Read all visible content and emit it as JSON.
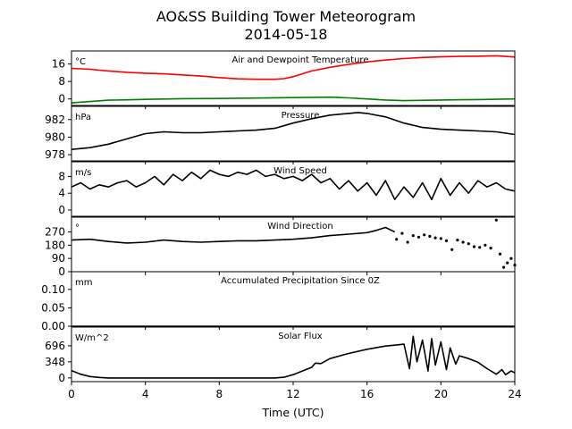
{
  "chart_data": {
    "type": "line",
    "title": "AO&SS Building Tower Meteorogram",
    "subtitle": "2014-05-18",
    "xlabel": "Time (UTC)",
    "xlim": [
      0,
      24
    ],
    "xticks": [
      "0",
      "4",
      "8",
      "12",
      "16",
      "20",
      "24"
    ],
    "panels": [
      {
        "id": "temp",
        "title": "Air and Dewpoint Temperature",
        "unit": "°C",
        "ylim": [
          -3,
          22
        ],
        "yticks": [
          "0",
          "8",
          "16"
        ],
        "series": [
          {
            "color": "#ff0000",
            "style": "line",
            "x": [
              0,
              1,
              2,
              3,
              4,
              5,
              6,
              7,
              8,
              9,
              10,
              11,
              11.5,
              12,
              12.5,
              13,
              14,
              15,
              16,
              17,
              18,
              19,
              20,
              21,
              22,
              23,
              24
            ],
            "y": [
              14,
              13.6,
              12.8,
              12.2,
              11.8,
              11.5,
              11,
              10.5,
              9.8,
              9.2,
              9.0,
              9.0,
              9.3,
              10.2,
              11.5,
              12.8,
              14.5,
              15.8,
              17.0,
              17.8,
              18.5,
              19.0,
              19.3,
              19.5,
              19.6,
              19.8,
              19.2
            ]
          },
          {
            "color": "#008000",
            "style": "line",
            "x": [
              0,
              1,
              2,
              3,
              4,
              6,
              8,
              10,
              12,
              14,
              15,
              16,
              17,
              18,
              20,
              22,
              24
            ],
            "y": [
              -1.8,
              -1.2,
              -0.6,
              -0.4,
              -0.2,
              0.1,
              0.2,
              0.4,
              0.6,
              0.8,
              0.5,
              0.0,
              -0.5,
              -0.8,
              -0.5,
              -0.3,
              0.0
            ]
          }
        ]
      },
      {
        "id": "pressure",
        "title": "Pressure",
        "unit": "hPa",
        "ylim": [
          977.3,
          983.5
        ],
        "yticks": [
          "978",
          "980",
          "982"
        ],
        "series": [
          {
            "color": "#000000",
            "style": "line",
            "x": [
              0,
              1,
              2,
              3,
              4,
              5,
              6,
              7,
              8,
              9,
              10,
              11,
              12,
              13,
              14,
              15,
              15.5,
              16,
              17,
              18,
              19,
              20,
              21,
              22,
              23,
              24
            ],
            "y": [
              978.6,
              978.8,
              979.2,
              979.8,
              980.4,
              980.6,
              980.5,
              980.5,
              980.6,
              980.7,
              980.8,
              981.0,
              981.6,
              982.1,
              982.5,
              982.7,
              982.8,
              982.7,
              982.3,
              981.6,
              981.1,
              980.9,
              980.8,
              980.7,
              980.6,
              980.3
            ]
          }
        ]
      },
      {
        "id": "wind-speed",
        "title": "Wind Speed",
        "unit": "m/s",
        "ylim": [
          -1.5,
          11.5
        ],
        "yticks": [
          "0",
          "4",
          "8"
        ],
        "series": [
          {
            "color": "#000000",
            "style": "line",
            "x": [
              0,
              0.5,
              1,
              1.5,
              2,
              2.5,
              3,
              3.5,
              4,
              4.5,
              5,
              5.5,
              6,
              6.5,
              7,
              7.5,
              8,
              8.5,
              9,
              9.5,
              10,
              10.5,
              11,
              11.5,
              12,
              12.5,
              13,
              13.5,
              14,
              14.5,
              15,
              15.5,
              16,
              16.5,
              17,
              17.5,
              18,
              18.5,
              19,
              19.5,
              20,
              20.5,
              21,
              21.5,
              22,
              22.5,
              23,
              23.5,
              24
            ],
            "y": [
              5.5,
              6.5,
              5.0,
              6.0,
              5.5,
              6.5,
              7.0,
              5.5,
              6.5,
              8.0,
              6.0,
              8.5,
              7.0,
              9.0,
              7.5,
              9.5,
              8.5,
              8.0,
              9.0,
              8.5,
              9.5,
              8.0,
              8.5,
              7.5,
              8.0,
              7.0,
              8.5,
              6.5,
              7.5,
              5.0,
              7.0,
              4.5,
              6.5,
              3.5,
              7.0,
              2.5,
              5.5,
              3.0,
              6.5,
              2.5,
              7.5,
              3.5,
              6.5,
              4.0,
              7.0,
              5.5,
              6.5,
              5.0,
              4.5
            ]
          }
        ]
      },
      {
        "id": "wind-direction",
        "title": "Wind Direction",
        "unit": "°",
        "ylim": [
          0,
          370
        ],
        "yticks": [
          "0",
          "90",
          "180",
          "270"
        ],
        "series": [
          {
            "color": "#000000",
            "style": "line",
            "x": [
              0,
              1,
              2,
              3,
              4,
              5,
              6,
              7,
              8,
              9,
              10,
              11,
              12,
              13,
              14,
              15,
              16,
              16.5,
              17,
              17.5
            ],
            "y": [
              215,
              220,
              205,
              195,
              200,
              215,
              205,
              200,
              205,
              210,
              210,
              215,
              220,
              230,
              245,
              255,
              265,
              280,
              300,
              270
            ]
          },
          {
            "color": "#000000",
            "style": "points",
            "x": [
              17.6,
              17.9,
              18.2,
              18.5,
              18.8,
              19.1,
              19.4,
              19.7,
              20.0,
              20.3,
              20.6,
              20.9,
              21.2,
              21.5,
              21.8,
              22.1,
              22.4,
              22.7,
              23.0,
              23.2,
              23.4,
              23.6,
              23.8,
              24.0
            ],
            "y": [
              220,
              260,
              200,
              245,
              235,
              250,
              240,
              230,
              225,
              210,
              150,
              215,
              200,
              190,
              170,
              165,
              180,
              160,
              350,
              120,
              30,
              60,
              90,
              45
            ]
          }
        ]
      },
      {
        "id": "precip",
        "title": "Accumulated Precipitation Since 0Z",
        "unit": "mm",
        "ylim": [
          0,
          0.148
        ],
        "yticks": [
          "0.00",
          "0.05",
          "0.10"
        ],
        "series": [
          {
            "color": "#000000",
            "style": "line",
            "x": [
              0,
              24
            ],
            "y": [
              0,
              0
            ]
          }
        ]
      },
      {
        "id": "solar",
        "title": "Solar Flux",
        "unit": "W/m^2",
        "ylim": [
          -80,
          1100
        ],
        "yticks": [
          "0",
          "348",
          "696"
        ],
        "series": [
          {
            "color": "#000000",
            "style": "line",
            "x": [
              0,
              0.5,
              1,
              1.5,
              2,
              4,
              6,
              8,
              10,
              11,
              11.5,
              12,
              12.5,
              13,
              13.2,
              13.5,
              14,
              15,
              16,
              17,
              17.5,
              18,
              18.3,
              18.5,
              18.7,
              19,
              19.3,
              19.5,
              19.7,
              20,
              20.3,
              20.5,
              20.8,
              21,
              21.5,
              22,
              22.5,
              23,
              23.3,
              23.5,
              23.8,
              24
            ],
            "y": [
              160,
              80,
              30,
              10,
              0,
              0,
              0,
              0,
              0,
              0,
              15,
              70,
              150,
              230,
              320,
              310,
              420,
              530,
              620,
              690,
              710,
              730,
              200,
              900,
              350,
              820,
              150,
              850,
              280,
              780,
              180,
              650,
              300,
              480,
              420,
              340,
              200,
              80,
              180,
              70,
              150,
              110
            ]
          }
        ]
      }
    ]
  }
}
